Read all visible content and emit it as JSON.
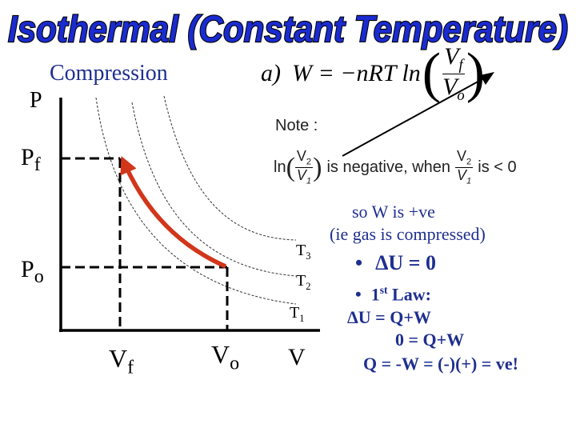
{
  "title": "Isothermal (Constant Temperature)",
  "subtitle": "Compression",
  "colors": {
    "title_fill": "#1a2bd0",
    "title_outline": "#000000",
    "curve": "#d2361a",
    "text_blue": "#1f2f8f"
  },
  "axes": {
    "y_label": "P",
    "x_label": "V"
  },
  "pressure_labels": {
    "pf_main": "P",
    "pf_sub": "f",
    "po_main": "P",
    "po_sub": "o"
  },
  "volume_labels": {
    "vf_main": "V",
    "vf_sub": "f",
    "vo_main": "V",
    "vo_sub": "o"
  },
  "isotherms": [
    {
      "main": "T",
      "sub": "3"
    },
    {
      "main": "T",
      "sub": "2"
    },
    {
      "main": "T",
      "sub": "1"
    }
  ],
  "formula": {
    "label": "a)",
    "lhs": "W = −nRT ln",
    "num_main": "V",
    "num_sub": "f",
    "den_main": "V",
    "den_sub": "o"
  },
  "note": {
    "heading": "Note :",
    "ln": "ln",
    "v2": "V",
    "v2_sub": "2",
    "v1": "V",
    "v1_sub": "1",
    "is_negative_text": "is negative, when",
    "less_than_zero": "is < 0"
  },
  "explanation": {
    "line1": "so W is +ve",
    "line2": "(ie gas is compressed)",
    "bullet1": "•",
    "delta_u_zero": "ΔU = 0",
    "bullet2": "•",
    "first_law_num": "1",
    "first_law_sup": "st",
    "first_law_rest": "Law:",
    "eq1": "ΔU = Q+W",
    "eq2": "0 = Q+W",
    "eq3": "Q = -W = (-)(+) = ve!"
  }
}
